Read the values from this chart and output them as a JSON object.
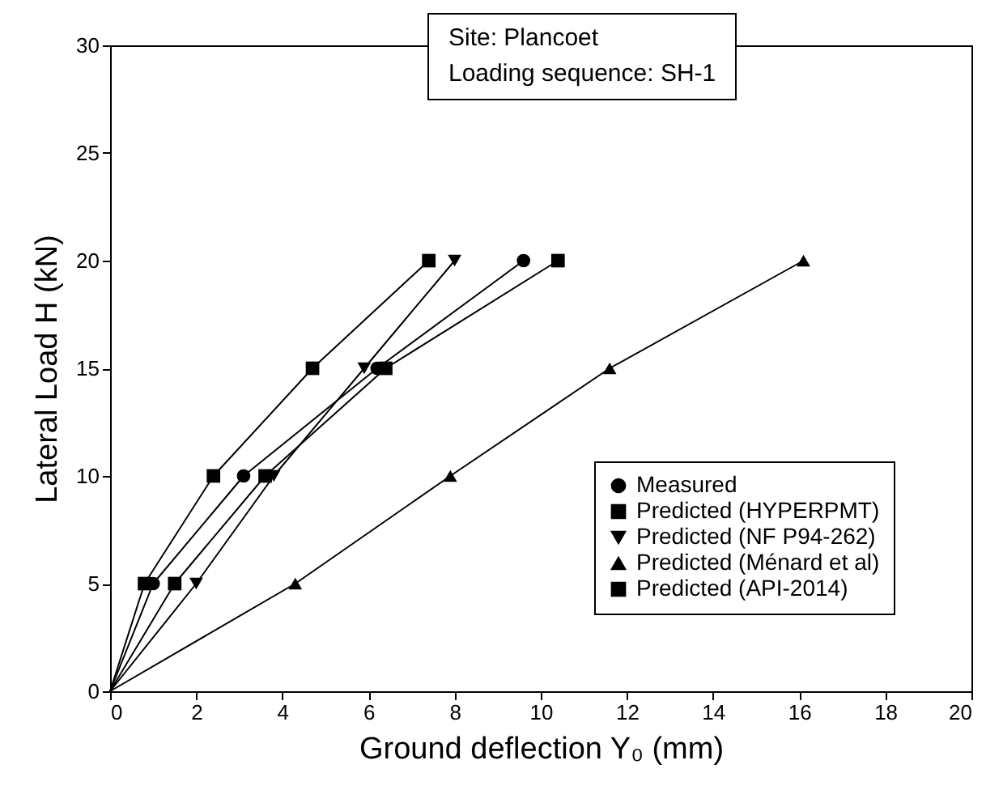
{
  "chart_data": {
    "type": "line",
    "xlabel": "Ground deflection Y₀  (mm)",
    "ylabel": "Lateral Load H (kN)",
    "annotations": [
      "Site: Plancoet",
      "Loading sequence: SH-1"
    ],
    "series": [
      {
        "name": "Measured",
        "color": "#000000",
        "marker": "circle",
        "x": [
          0,
          1.0,
          3.1,
          6.2,
          9.6
        ],
        "values": [
          0,
          5,
          10,
          15,
          20
        ]
      },
      {
        "name": "Predicted (HYPERPMT)",
        "color": "#000000",
        "marker": "square",
        "x": [
          0,
          1.5,
          3.6,
          6.4,
          10.4
        ],
        "values": [
          0,
          5,
          10,
          15,
          20
        ]
      },
      {
        "name": "Predicted (NF P94-262)",
        "color": "#000000",
        "marker": "triangle-down",
        "x": [
          0,
          2.0,
          3.8,
          5.9,
          8.0
        ],
        "values": [
          0,
          5,
          10,
          15,
          20
        ]
      },
      {
        "name": "Predicted (Ménard et al)",
        "color": "#000000",
        "marker": "triangle",
        "x": [
          0,
          4.3,
          7.9,
          11.6,
          16.1
        ],
        "values": [
          0,
          5,
          10,
          15,
          20
        ]
      },
      {
        "name": "Predicted (API-2014)",
        "color": "#000000",
        "marker": "square",
        "x": [
          0,
          0.8,
          2.4,
          4.7,
          7.4
        ],
        "values": [
          0,
          5,
          10,
          15,
          20
        ]
      }
    ],
    "xlim": [
      0,
      20
    ],
    "xticks": [
      0,
      2,
      4,
      6,
      8,
      10,
      12,
      14,
      16,
      18,
      20
    ],
    "ylim": [
      0,
      30
    ],
    "yticks": [
      0,
      5,
      10,
      15,
      20,
      25,
      30
    ],
    "grid": false,
    "legend": "bottom right",
    "line_style": "solid"
  }
}
